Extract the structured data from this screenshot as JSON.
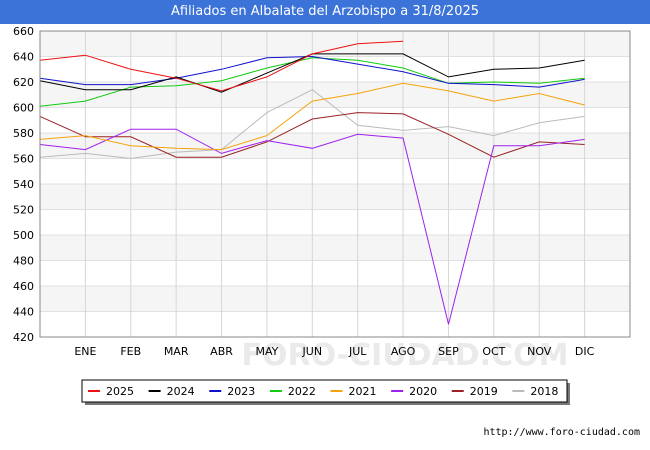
{
  "header": {
    "title": "Afiliados en Albalate del Arzobispo a 31/8/2025"
  },
  "footer": {
    "source": "http://www.foro-ciudad.com",
    "watermark": "FORO-CIUDAD.COM"
  },
  "chart_data": {
    "type": "line",
    "title": "Afiliados en Albalate del Arzobispo a 31/8/2025",
    "xlabel": "",
    "ylabel": "",
    "categories": [
      "",
      "ENE",
      "FEB",
      "MAR",
      "ABR",
      "MAY",
      "JUN",
      "JUL",
      "AGO",
      "SEP",
      "OCT",
      "NOV",
      "DIC"
    ],
    "ylim": [
      420,
      660
    ],
    "yticks": [
      420,
      440,
      460,
      480,
      500,
      520,
      540,
      560,
      580,
      600,
      620,
      640,
      660
    ],
    "grid": true,
    "legend_position": "bottom",
    "series": [
      {
        "name": "2025",
        "color": "#ee1111",
        "values": [
          637,
          641,
          630,
          623,
          613,
          624,
          642,
          650,
          652,
          null,
          null,
          null,
          null
        ]
      },
      {
        "name": "2024",
        "color": "#000000",
        "values": [
          621,
          614,
          614,
          624,
          612,
          627,
          642,
          642,
          642,
          624,
          630,
          631,
          637
        ]
      },
      {
        "name": "2023",
        "color": "#1111cc",
        "values": [
          623,
          618,
          618,
          623,
          630,
          639,
          640,
          634,
          628,
          619,
          618,
          616,
          622
        ]
      },
      {
        "name": "2022",
        "color": "#11cc11",
        "values": [
          601,
          605,
          616,
          617,
          621,
          631,
          639,
          637,
          631,
          619,
          620,
          619,
          623
        ]
      },
      {
        "name": "2021",
        "color": "#f5a30a",
        "values": [
          575,
          578,
          570,
          568,
          567,
          578,
          605,
          611,
          619,
          613,
          605,
          611,
          602
        ]
      },
      {
        "name": "2020",
        "color": "#a020f0",
        "values": [
          571,
          567,
          583,
          583,
          564,
          574,
          568,
          579,
          576,
          430,
          570,
          570,
          575
        ]
      },
      {
        "name": "2019",
        "color": "#9b2226",
        "values": [
          593,
          577,
          577,
          561,
          561,
          573,
          591,
          596,
          595,
          579,
          561,
          573,
          571
        ]
      },
      {
        "name": "2018",
        "color": "#bbbbbb",
        "values": [
          561,
          564,
          560,
          565,
          567,
          596,
          614,
          586,
          582,
          585,
          578,
          588,
          593
        ]
      }
    ]
  }
}
